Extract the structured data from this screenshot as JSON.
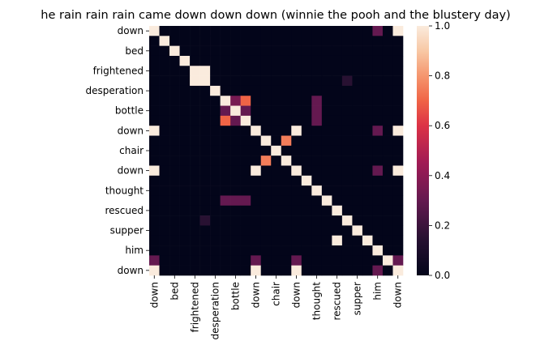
{
  "chart_data": {
    "type": "heatmap",
    "title": "he rain rain rain came down down down (winnie the pooh and the blustery day)",
    "xlabel": "",
    "ylabel": "",
    "labels": [
      "down",
      "",
      "bed",
      "",
      "frightened",
      "",
      "desperation",
      "",
      "bottle",
      "",
      "down",
      "",
      "chair",
      "",
      "down",
      "",
      "thought",
      "",
      "rescued",
      "",
      "supper",
      "",
      "him",
      "",
      "down"
    ],
    "ytick_labels": [
      "down",
      "bed",
      "frightened",
      "desperation",
      "bottle",
      "down",
      "chair",
      "down",
      "thought",
      "rescued",
      "supper",
      "him",
      "down"
    ],
    "xtick_labels": [
      "down",
      "bed",
      "frightened",
      "desperation",
      "bottle",
      "down",
      "chair",
      "down",
      "thought",
      "rescued",
      "supper",
      "him",
      "down"
    ],
    "values": [
      [
        1.0,
        0,
        0,
        0,
        0,
        0,
        0,
        0,
        0,
        0,
        0,
        0,
        0,
        0,
        0,
        0,
        0,
        0,
        0,
        0,
        0,
        0,
        0.3,
        0,
        1.0
      ],
      [
        0,
        1.0,
        0,
        0,
        0,
        0,
        0,
        0,
        0,
        0,
        0,
        0,
        0,
        0,
        0,
        0,
        0,
        0,
        0,
        0,
        0,
        0,
        0,
        0,
        0
      ],
      [
        0,
        0,
        1.0,
        0,
        0,
        0,
        0,
        0,
        0,
        0,
        0,
        0,
        0,
        0,
        0,
        0,
        0,
        0,
        0,
        0,
        0,
        0,
        0,
        0,
        0
      ],
      [
        0,
        0,
        0,
        1.0,
        0,
        0,
        0,
        0,
        0,
        0,
        0,
        0,
        0,
        0,
        0,
        0,
        0,
        0,
        0,
        0,
        0,
        0,
        0,
        0,
        0
      ],
      [
        0,
        0,
        0,
        0,
        1.0,
        1.0,
        0,
        0,
        0,
        0,
        0,
        0,
        0,
        0,
        0,
        0,
        0,
        0,
        0,
        0,
        0,
        0,
        0,
        0,
        0
      ],
      [
        0,
        0,
        0,
        0,
        1.0,
        1.0,
        0,
        0,
        0,
        0,
        0,
        0,
        0,
        0,
        0,
        0,
        0,
        0,
        0,
        0.15,
        0,
        0,
        0,
        0,
        0
      ],
      [
        0,
        0,
        0,
        0,
        0,
        0,
        1.0,
        0,
        0,
        0,
        0,
        0,
        0,
        0,
        0,
        0,
        0,
        0,
        0,
        0,
        0,
        0,
        0,
        0,
        0
      ],
      [
        0,
        0,
        0,
        0,
        0,
        0,
        0,
        1.0,
        0.35,
        0.7,
        0,
        0,
        0,
        0,
        0,
        0,
        0.3,
        0,
        0,
        0,
        0,
        0,
        0,
        0,
        0
      ],
      [
        0,
        0,
        0,
        0,
        0,
        0,
        0,
        0.3,
        1.0,
        0.3,
        0,
        0,
        0,
        0,
        0,
        0,
        0.3,
        0,
        0,
        0,
        0,
        0,
        0,
        0,
        0
      ],
      [
        0,
        0,
        0,
        0,
        0,
        0,
        0,
        0.7,
        0.3,
        1.0,
        0,
        0,
        0,
        0,
        0,
        0,
        0.3,
        0,
        0,
        0,
        0,
        0,
        0,
        0,
        0
      ],
      [
        1.0,
        0,
        0,
        0,
        0,
        0,
        0,
        0,
        0,
        0,
        1.0,
        0,
        0,
        0,
        1.0,
        0,
        0,
        0,
        0,
        0,
        0,
        0,
        0.3,
        0,
        1.0
      ],
      [
        0,
        0,
        0,
        0,
        0,
        0,
        0,
        0,
        0,
        0,
        0,
        1.0,
        0,
        0.75,
        0,
        0,
        0,
        0,
        0,
        0,
        0,
        0,
        0,
        0,
        0
      ],
      [
        0,
        0,
        0,
        0,
        0,
        0,
        0,
        0,
        0,
        0,
        0,
        0,
        1.0,
        0,
        0,
        0,
        0,
        0,
        0,
        0,
        0,
        0,
        0,
        0,
        0
      ],
      [
        0,
        0,
        0,
        0,
        0,
        0,
        0,
        0,
        0,
        0,
        0,
        0.75,
        0,
        1.0,
        0,
        0,
        0,
        0,
        0,
        0,
        0,
        0,
        0,
        0,
        0
      ],
      [
        1.0,
        0,
        0,
        0,
        0,
        0,
        0,
        0,
        0,
        0,
        1.0,
        0,
        0,
        0,
        1.0,
        0,
        0,
        0,
        0,
        0,
        0,
        0,
        0.3,
        0,
        1.0
      ],
      [
        0,
        0,
        0,
        0,
        0,
        0,
        0,
        0,
        0,
        0,
        0,
        0,
        0,
        0,
        0,
        1.0,
        0,
        0,
        0,
        0,
        0,
        0,
        0,
        0,
        0
      ],
      [
        0,
        0,
        0,
        0,
        0,
        0,
        0,
        0,
        0,
        0,
        0,
        0,
        0,
        0,
        0,
        0,
        1.0,
        0,
        0,
        0,
        0,
        0,
        0,
        0,
        0
      ],
      [
        0,
        0,
        0,
        0,
        0,
        0,
        0,
        0.3,
        0.3,
        0.3,
        0,
        0,
        0,
        0,
        0,
        0,
        0,
        1.0,
        0,
        0,
        0,
        0,
        0,
        0,
        0
      ],
      [
        0,
        0,
        0,
        0,
        0,
        0,
        0,
        0,
        0,
        0,
        0,
        0,
        0,
        0,
        0,
        0,
        0,
        0,
        1.0,
        0,
        0,
        0,
        0,
        0,
        0
      ],
      [
        0,
        0,
        0,
        0,
        0,
        0.15,
        0,
        0,
        0,
        0,
        0,
        0,
        0,
        0,
        0,
        0,
        0,
        0,
        0,
        1.0,
        0,
        0,
        0,
        0,
        0
      ],
      [
        0,
        0,
        0,
        0,
        0,
        0,
        0,
        0,
        0,
        0,
        0,
        0,
        0,
        0,
        0,
        0,
        0,
        0,
        0,
        0,
        1.0,
        0,
        0,
        0,
        0
      ],
      [
        0,
        0,
        0,
        0,
        0,
        0,
        0,
        0,
        0,
        0,
        0,
        0,
        0,
        0,
        0,
        0,
        0,
        0,
        1.0,
        0,
        0,
        1.0,
        0,
        0,
        0
      ],
      [
        0,
        0,
        0,
        0,
        0,
        0,
        0,
        0,
        0,
        0,
        0,
        0,
        0,
        0,
        0,
        0,
        0,
        0,
        0,
        0,
        0,
        0,
        1.0,
        0,
        0
      ],
      [
        0.3,
        0,
        0,
        0,
        0,
        0,
        0,
        0,
        0,
        0,
        0.3,
        0,
        0,
        0,
        0.3,
        0,
        0,
        0,
        0,
        0,
        0,
        0,
        0,
        1.0,
        0.3
      ],
      [
        1.0,
        0,
        0,
        0,
        0,
        0,
        0,
        0,
        0,
        0,
        1.0,
        0,
        0,
        0,
        1.0,
        0,
        0,
        0,
        0,
        0,
        0,
        0,
        0.3,
        0,
        1.0
      ]
    ],
    "colormap": "rocket",
    "colorbar": {
      "range": [
        0.0,
        1.0
      ],
      "tick_labels": [
        "0.0",
        "0.2",
        "0.4",
        "0.6",
        "0.8",
        "1.0"
      ]
    },
    "grid": false,
    "legend": "none"
  }
}
